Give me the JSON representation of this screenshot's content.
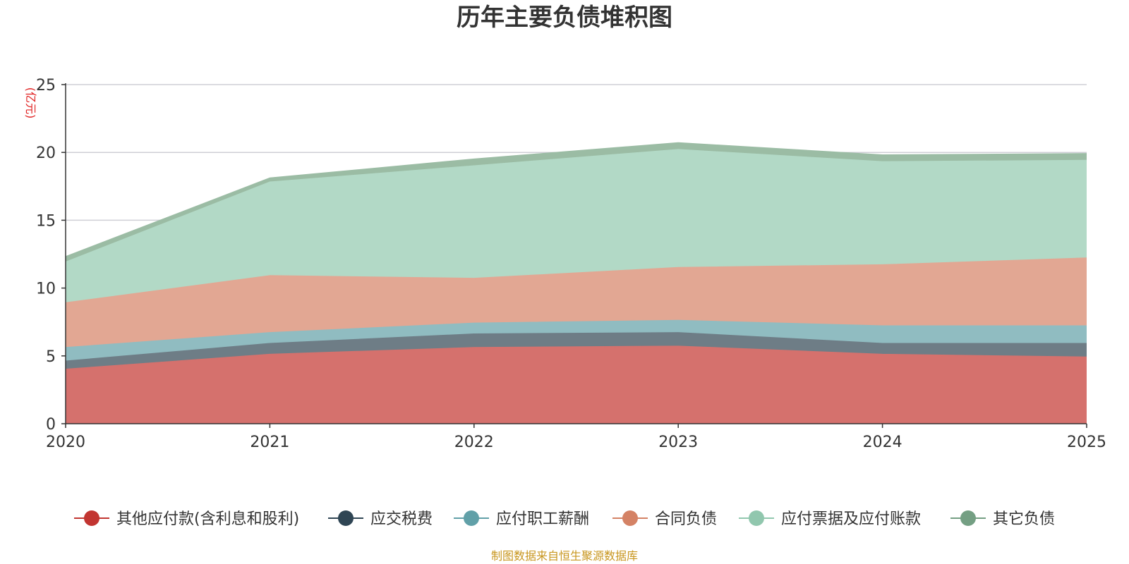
{
  "chart_data": {
    "type": "area",
    "stacked": true,
    "title": "历年主要负债堆积图",
    "unit_label": "(亿元)",
    "x": [
      "2020",
      "2021",
      "2022",
      "2023",
      "2024",
      "2025"
    ],
    "y_ticks": [
      "0",
      "5",
      "10",
      "15",
      "20",
      "25"
    ],
    "ylim": [
      0,
      25
    ],
    "grid": true,
    "legend_position": "bottom",
    "series": [
      {
        "name": "其他应付款(含利息和股利)",
        "values": [
          4.0,
          5.1,
          5.6,
          5.7,
          5.1,
          4.9
        ],
        "color": "#c23531",
        "fill": "#d5716d"
      },
      {
        "name": "应交税费",
        "values": [
          0.6,
          0.8,
          1.0,
          1.0,
          0.8,
          1.0
        ],
        "color": "#2f4554",
        "fill": "#6e7d86"
      },
      {
        "name": "应付职工薪酬",
        "values": [
          1.0,
          0.8,
          0.8,
          0.9,
          1.3,
          1.3
        ],
        "color": "#61a0a8",
        "fill": "#90bcc1"
      },
      {
        "name": "合同负债",
        "values": [
          3.3,
          4.2,
          3.3,
          3.9,
          4.5,
          5.0
        ],
        "color": "#d48265",
        "fill": "#e2a793"
      },
      {
        "name": "应付票据及应付账款",
        "values": [
          3.0,
          6.9,
          8.3,
          8.7,
          7.6,
          7.2
        ],
        "color": "#91c7ae",
        "fill": "#b2d9c6"
      },
      {
        "name": "其它负债",
        "values": [
          0.4,
          0.3,
          0.5,
          0.5,
          0.5,
          0.5
        ],
        "color": "#749f83",
        "fill": "#9bbca4"
      }
    ],
    "source": "制图数据来自恒生聚源数据库"
  }
}
